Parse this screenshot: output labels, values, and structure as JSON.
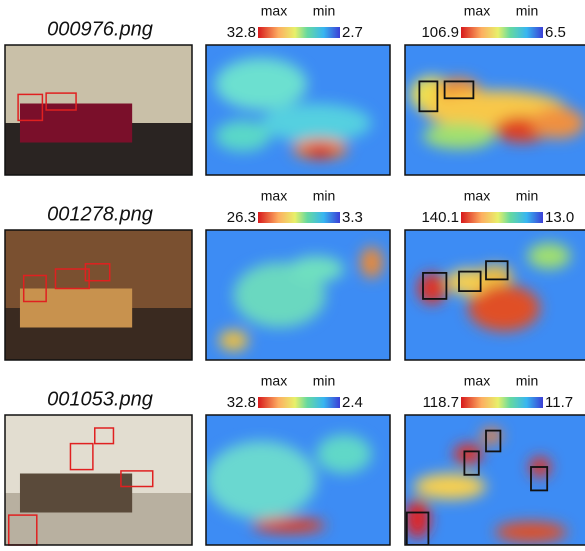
{
  "rows": [
    {
      "filename": "000976.png",
      "heatmaps": [
        {
          "max_label": "max",
          "min_label": "min",
          "max": "32.8",
          "min": "2.7"
        },
        {
          "max_label": "max",
          "min_label": "min",
          "max": "106.9",
          "min": "6.5"
        }
      ]
    },
    {
      "filename": "001278.png",
      "heatmaps": [
        {
          "max_label": "max",
          "min_label": "min",
          "max": "26.3",
          "min": "3.3"
        },
        {
          "max_label": "max",
          "min_label": "min",
          "max": "140.1",
          "min": "13.0"
        }
      ]
    },
    {
      "filename": "001053.png",
      "heatmaps": [
        {
          "max_label": "max",
          "min_label": "min",
          "max": "32.8",
          "min": "2.4"
        },
        {
          "max_label": "max",
          "min_label": "min",
          "max": "118.7",
          "min": "11.7"
        }
      ]
    }
  ]
}
